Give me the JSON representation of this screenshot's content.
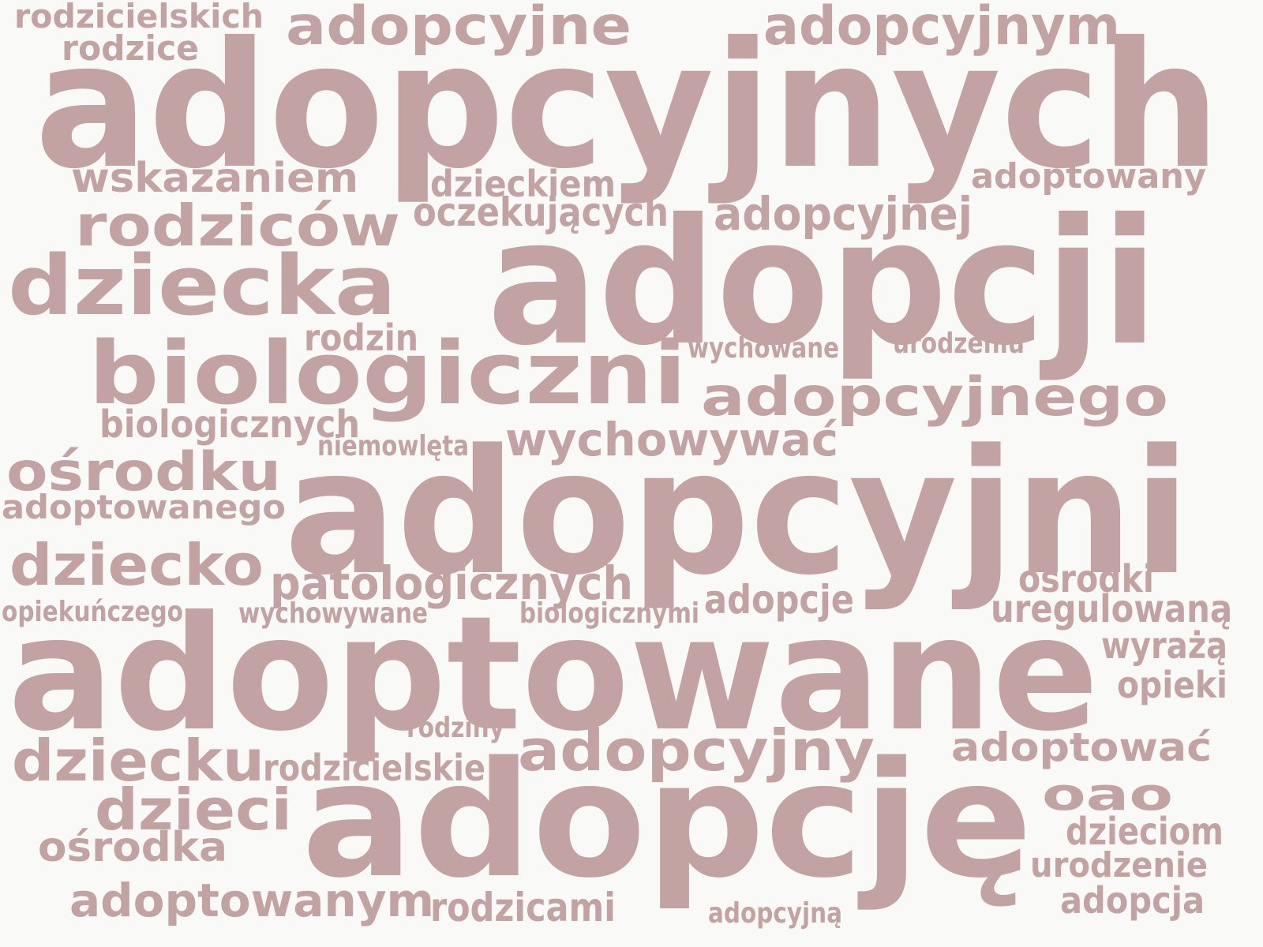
{
  "theme": {
    "background": "#f9f9f7",
    "word_color": "#c2a2a2"
  },
  "words": {
    "w01": "adopcyjnych",
    "w02": "adopcji",
    "w03": "adopcyjni",
    "w04": "adoptowane",
    "w05": "adopcję",
    "w06": "biologiczni",
    "w07": "dziecka",
    "w08": "rodziców",
    "w09": "adopcyjne",
    "w10": "adopcyjnym",
    "w11": "adopcyjnego",
    "w12": "dziecko",
    "w13": "dziecku",
    "w14": "dzieci",
    "w15": "ośrodku",
    "w16": "adopcyjny",
    "w17": "wychowywać",
    "w18": "patologicznych",
    "w19": "adoptowanym",
    "w20": "adopcyjnej",
    "w21": "wskazaniem",
    "w22": "oao",
    "w23": "adoptować",
    "w24": "ośrodka",
    "w25": "adoptowany",
    "w26": "adopcje",
    "w27": "oczekujących",
    "w28": "dzieckiem",
    "w29": "rodzicami",
    "w30": "biologicznych",
    "w31": "uregulowaną",
    "w32": "rodzicielskie",
    "w33": "rodzin",
    "w34": "adoptowanego",
    "w35": "rodzicielskich",
    "w36": "rodzice",
    "w37": "ośrodki",
    "w38": "dzieciom",
    "w39": "urodzenie",
    "w40": "adopcja",
    "w41": "wyrażą",
    "w42": "opieki",
    "w43": "niemowlęta",
    "w44": "wychowane",
    "w45": "urodzeniu",
    "w46": "wychowywane",
    "w47": "biologicznymi",
    "w48": "opiekuńczego",
    "w49": "rodziny",
    "w50": "adopcyjną"
  }
}
